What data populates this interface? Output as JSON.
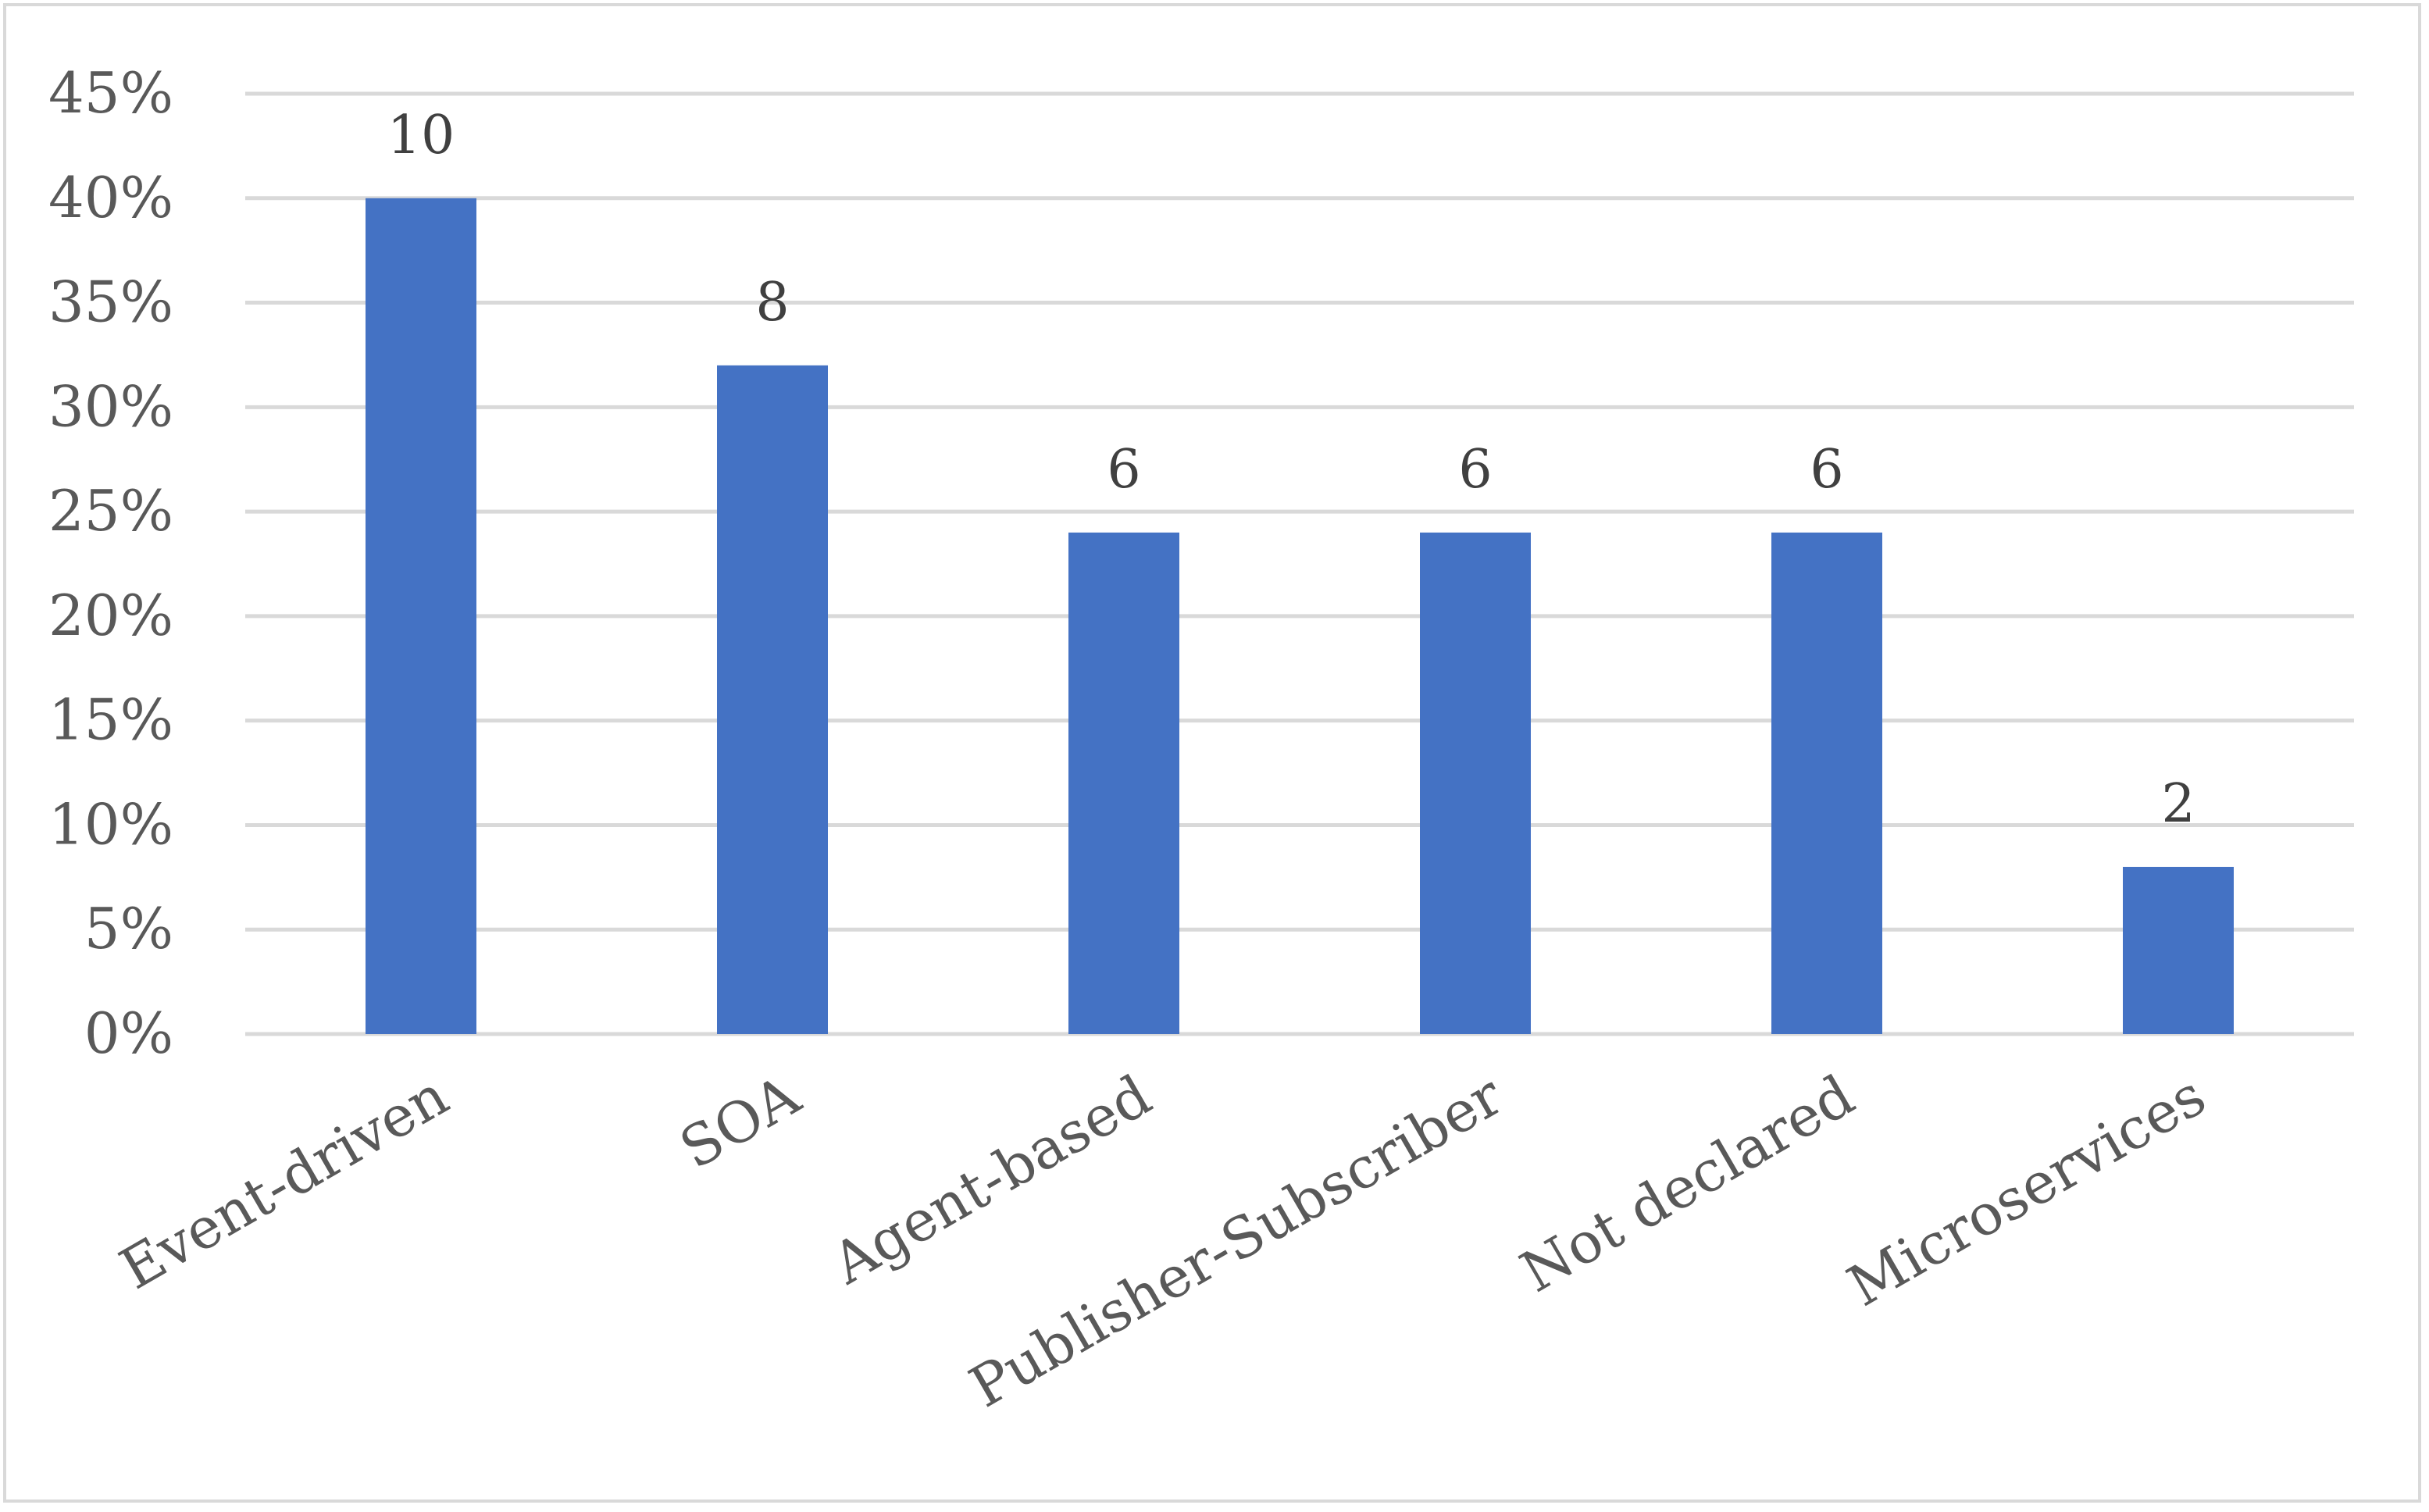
{
  "chart_data": {
    "type": "bar",
    "categories": [
      "Event-driven",
      "SOA",
      "Agent-based",
      "Publisher-Subscriber",
      "Not declared",
      "Microservices"
    ],
    "values": [
      0.4,
      0.32,
      0.24,
      0.24,
      0.24,
      0.08
    ],
    "data_labels": [
      "10",
      "8",
      "6",
      "6",
      "6",
      "2"
    ],
    "y_ticks": [
      "0%",
      "5%",
      "10%",
      "15%",
      "20%",
      "25%",
      "30%",
      "35%",
      "40%",
      "45%"
    ],
    "ylim": [
      0,
      0.45
    ],
    "title": "",
    "xlabel": "",
    "ylabel": "",
    "grid": true,
    "legend": "none",
    "bar_color": "#4472c4",
    "grid_color": "#d9d9d9",
    "text_color": "#595959"
  }
}
